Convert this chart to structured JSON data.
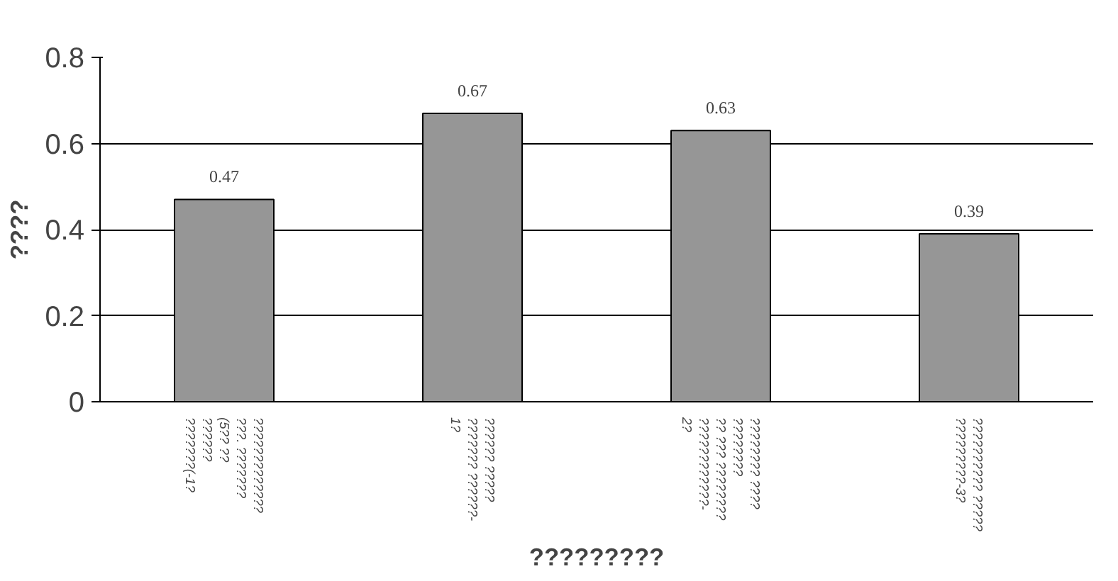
{
  "chart_data": {
    "type": "bar",
    "xlabel": "?????????",
    "ylabel": "????",
    "categories": [
      "?????????????\n???. ???????\n(5?? ??\n??????\n???????(-1?",
      "?????? ?????\n??????? ??????-\n1?",
      "???????? ????\n????????\n?? ??? ????????\n????????????-\n2?",
      "?????????? ?????\n?????????-3?"
    ],
    "values": [
      0.47,
      0.67,
      0.63,
      0.39
    ],
    "color": "#969696",
    "ylim": [
      0,
      0.8
    ],
    "yticks": [
      0,
      0.2,
      0.4,
      0.6,
      0.8
    ],
    "grid": "y",
    "data_labels": true
  }
}
